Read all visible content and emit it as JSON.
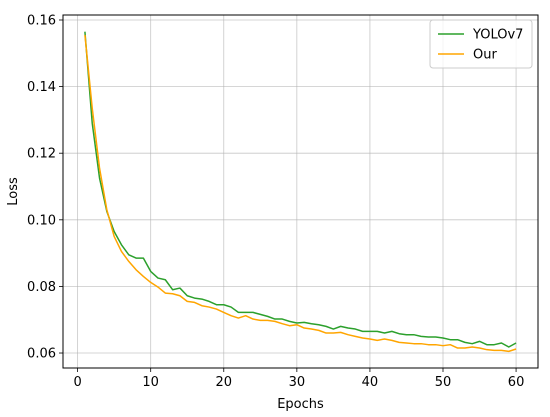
{
  "chart_data": {
    "type": "line",
    "title": "",
    "xlabel": "Epochs",
    "ylabel": "Loss",
    "xlim": [
      -2,
      63
    ],
    "ylim": [
      0.0555,
      0.1615
    ],
    "xticks": [
      0,
      10,
      20,
      30,
      40,
      50,
      60
    ],
    "yticks": [
      0.06,
      0.08,
      0.1,
      0.12,
      0.14,
      0.16
    ],
    "ytick_labels": [
      "0.06",
      "0.08",
      "0.10",
      "0.12",
      "0.14",
      "0.16"
    ],
    "grid": true,
    "legend_position": "top-right",
    "x": [
      1,
      2,
      3,
      4,
      5,
      6,
      7,
      8,
      9,
      10,
      11,
      12,
      13,
      14,
      15,
      16,
      17,
      18,
      19,
      20,
      21,
      22,
      23,
      24,
      25,
      26,
      27,
      28,
      29,
      30,
      31,
      32,
      33,
      34,
      35,
      36,
      37,
      38,
      39,
      40,
      41,
      42,
      43,
      44,
      45,
      46,
      47,
      48,
      49,
      50,
      51,
      52,
      53,
      54,
      55,
      56,
      57,
      58,
      59,
      60
    ],
    "series": [
      {
        "name": "YOLOv7",
        "color": "#2ca02c",
        "values": [
          0.1565,
          0.129,
          0.1125,
          0.1025,
          0.0965,
          0.0925,
          0.0895,
          0.0885,
          0.0885,
          0.0845,
          0.0825,
          0.082,
          0.079,
          0.0795,
          0.0772,
          0.0765,
          0.0762,
          0.0755,
          0.0745,
          0.0745,
          0.0738,
          0.0722,
          0.0722,
          0.0722,
          0.0716,
          0.071,
          0.0702,
          0.0702,
          0.0695,
          0.069,
          0.0692,
          0.0688,
          0.0685,
          0.068,
          0.0672,
          0.068,
          0.0675,
          0.0672,
          0.0665,
          0.0665,
          0.0665,
          0.066,
          0.0665,
          0.0658,
          0.0655,
          0.0655,
          0.065,
          0.0648,
          0.0648,
          0.0645,
          0.064,
          0.064,
          0.0632,
          0.0628,
          0.0635,
          0.0625,
          0.0625,
          0.063,
          0.0618,
          0.063
        ]
      },
      {
        "name": "Our",
        "color": "#ffa500",
        "values": [
          0.1555,
          0.1335,
          0.1155,
          0.103,
          0.095,
          0.0905,
          0.0875,
          0.085,
          0.083,
          0.0812,
          0.0798,
          0.078,
          0.0778,
          0.0772,
          0.0755,
          0.0752,
          0.0742,
          0.0738,
          0.0732,
          0.0722,
          0.0712,
          0.0705,
          0.0712,
          0.0702,
          0.0698,
          0.0698,
          0.0695,
          0.0688,
          0.0682,
          0.0685,
          0.0675,
          0.0672,
          0.0668,
          0.066,
          0.066,
          0.0662,
          0.0655,
          0.065,
          0.0645,
          0.0642,
          0.0638,
          0.0642,
          0.0638,
          0.0632,
          0.063,
          0.0628,
          0.0628,
          0.0625,
          0.0625,
          0.0622,
          0.0625,
          0.0615,
          0.0615,
          0.0618,
          0.0615,
          0.061,
          0.0608,
          0.0608,
          0.0605,
          0.0612
        ]
      }
    ]
  }
}
